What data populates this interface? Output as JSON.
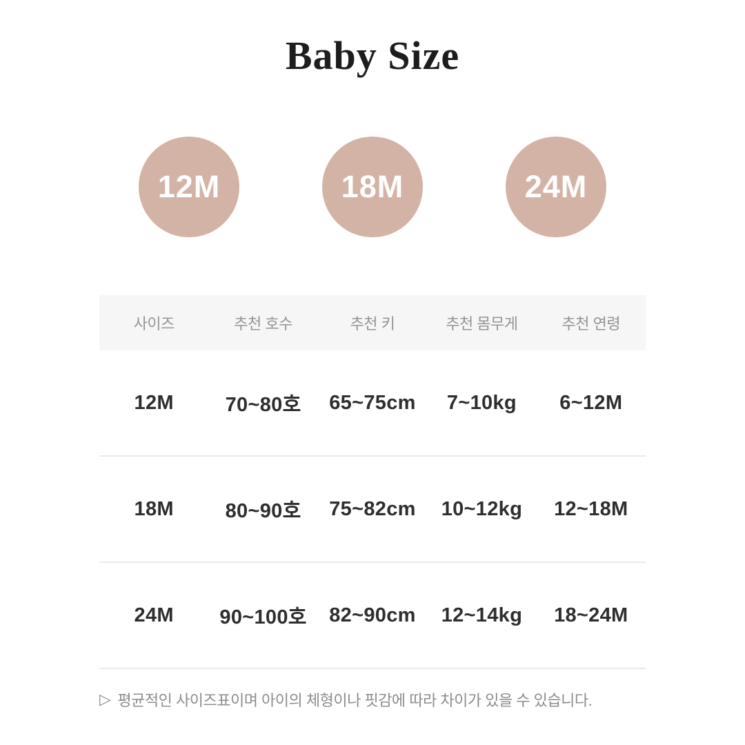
{
  "chart_data": {
    "type": "table",
    "title": "Baby Size",
    "size_labels": [
      "12M",
      "18M",
      "24M"
    ],
    "columns": [
      "사이즈",
      "추천 호수",
      "추천 키",
      "추천 몸무게",
      "추천 연령"
    ],
    "rows": [
      [
        "12M",
        "70~80호",
        "65~75cm",
        "7~10kg",
        "6~12M"
      ],
      [
        "18M",
        "80~90호",
        "75~82cm",
        "10~12kg",
        "12~18M"
      ],
      [
        "24M",
        "90~100호",
        "82~90cm",
        "12~14kg",
        "18~24M"
      ]
    ],
    "note_bullet": "▷",
    "note": "평균적인 사이즈표이며 아이의 체형이나 핏감에 따라 차이가 있을 수 있습니다.",
    "layout_hints": "header band light gray, 5 equal columns, rows separated by thin light dividers"
  },
  "colors": {
    "badge_circle": "#d3b3a5",
    "badge_text": "#ffffff",
    "header_bg": "#f6f6f6",
    "header_text": "#949494",
    "divider": "#eaeaea"
  }
}
